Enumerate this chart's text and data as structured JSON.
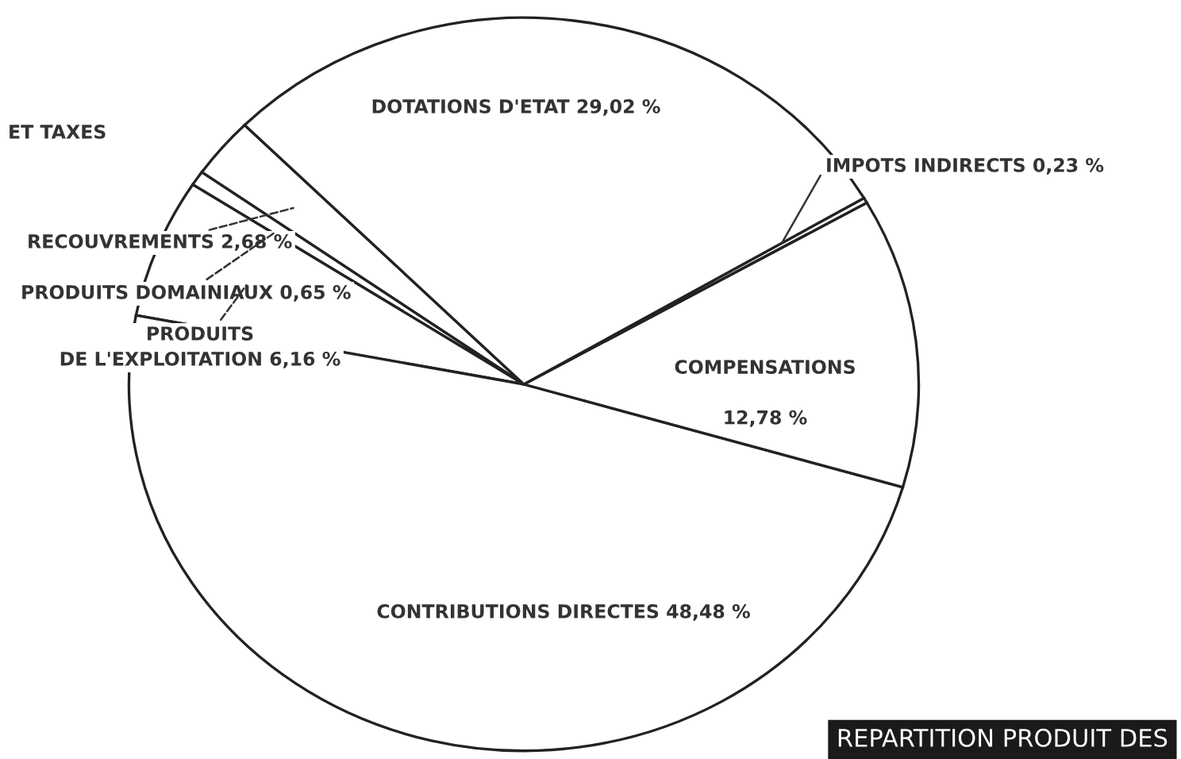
{
  "chart_data": {
    "type": "pie",
    "categories": [
      "RECOUVREMENTS",
      "PRODUITS DOMAINIAUX",
      "PRODUITS\nDE L'EXPLOITATION",
      "CONTRIBUTIONS DIRECTES",
      "COMPENSATIONS",
      "IMPOTS INDIRECTS",
      "DOTATIONS D'ETAT"
    ],
    "values": [
      2.68,
      0.65,
      6.16,
      48.48,
      12.78,
      0.23,
      29.02
    ],
    "value_labels": [
      "2,68 %",
      "0,65 %",
      "6,16 %",
      "48,48 %",
      "12,78 %",
      "0,23 %",
      "29,02 %"
    ],
    "colors": [
      "#ffffff",
      "#ffffff",
      "#ffffff",
      "#ffffff",
      "#ffffff",
      "#ffffff",
      "#ffffff"
    ],
    "annotations": [
      "ET TAXES",
      "REPARTITION PRODUIT DES"
    ],
    "legend": false
  }
}
